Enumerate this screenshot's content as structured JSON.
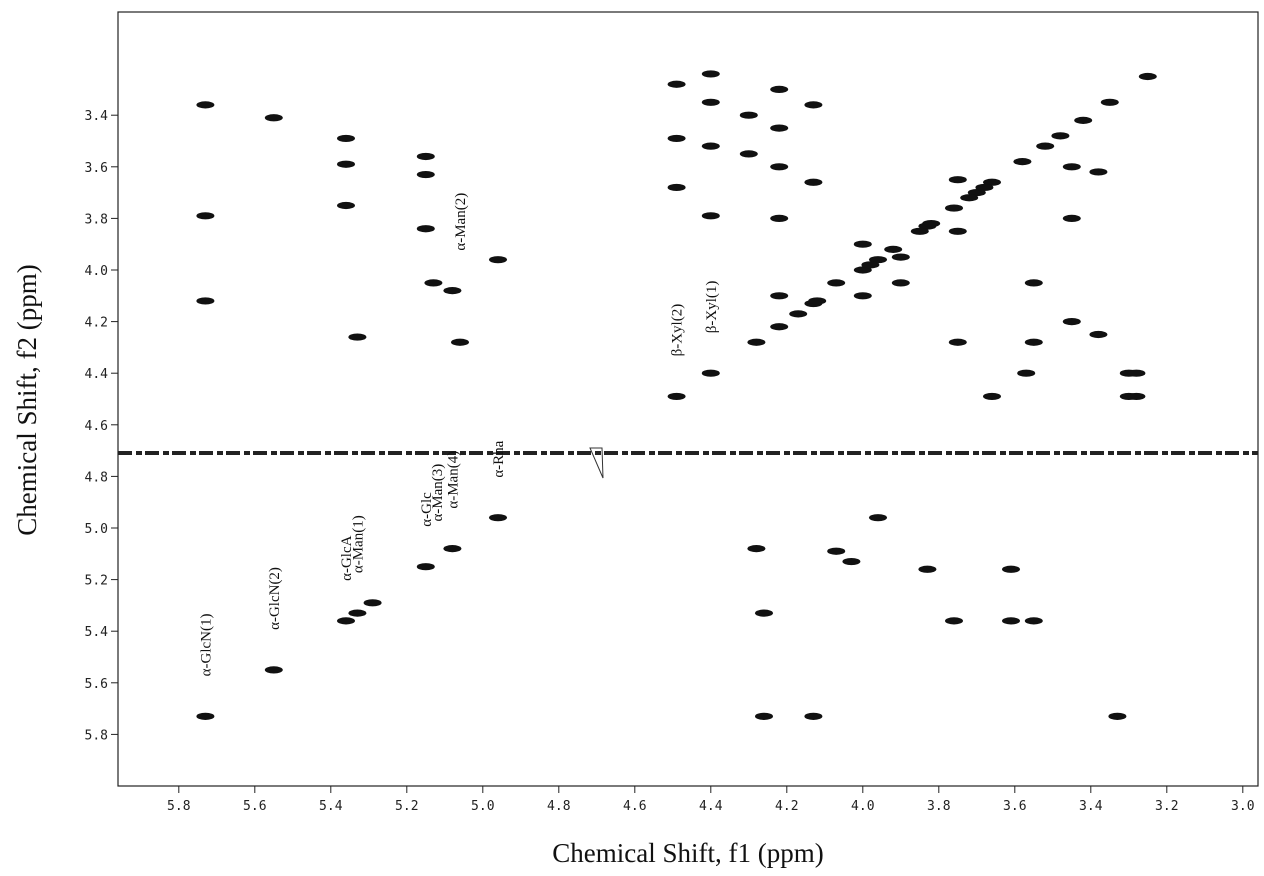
{
  "chart_data": {
    "type": "scatter",
    "xlabel": "Chemical Shift, f1 (ppm)",
    "ylabel": "Chemical Shift, f2 (ppm)",
    "xlim": [
      5.96,
      2.96
    ],
    "ylim": [
      3.0,
      6.0
    ],
    "xticks": [
      5.8,
      5.6,
      5.4,
      5.2,
      {
        "value": 5,
        "label": "5.0"
      },
      4.8,
      4.6,
      4.4,
      4.2,
      {
        "value": 4,
        "label": "4.0"
      },
      3.8,
      3.6,
      3.4,
      3.2,
      {
        "value": 3,
        "label": "3.0"
      }
    ],
    "yticks": [
      3.4,
      3.6,
      3.8,
      {
        "value": 4,
        "label": "4.0"
      },
      4.2,
      4.4,
      4.6,
      4.8,
      {
        "value": 5,
        "label": "5.0"
      },
      5.2,
      5.4,
      5.6,
      5.8
    ],
    "color": "#111111",
    "series": [
      {
        "x": [
          5.73,
          5.73,
          5.73,
          5.73,
          5.55,
          5.55,
          5.36,
          5.36,
          5.36,
          5.36,
          5.33,
          5.33,
          5.29,
          5.15,
          5.15,
          5.15,
          5.15,
          5.13,
          5.08,
          5.08,
          5.06,
          4.96,
          4.96,
          4.49,
          4.49,
          4.49,
          4.49,
          4.4,
          4.4,
          4.4,
          4.4,
          4.4,
          4.28,
          4.28,
          4.26,
          4.26,
          4.22,
          4.22,
          4.22,
          4.22,
          4.22,
          4.22,
          4.13,
          4.13,
          4.13,
          4.13,
          4.07,
          4.07,
          4.03,
          3.96,
          3.96,
          3.83,
          3.83,
          3.76,
          3.76,
          3.66,
          3.66,
          3.61,
          3.61,
          3.57,
          3.55,
          3.33,
          3.3,
          3.3,
          3.25,
          3.35,
          3.48,
          3.58,
          3.7,
          3.85,
          3.92,
          4.0,
          4.0,
          4.0,
          3.9,
          3.9,
          3.75,
          3.75,
          3.75,
          3.55,
          3.55,
          3.45,
          3.45,
          3.45,
          3.38,
          3.38,
          4.17,
          4.12,
          3.98,
          3.82,
          3.72,
          3.68,
          3.52,
          3.42,
          3.28,
          3.28,
          4.3,
          4.3
        ],
        "y": [
          3.36,
          3.79,
          4.12,
          5.73,
          3.41,
          5.55,
          3.49,
          3.59,
          3.75,
          5.36,
          4.26,
          5.33,
          5.29,
          3.56,
          3.63,
          3.84,
          5.15,
          4.05,
          4.08,
          5.08,
          4.28,
          3.96,
          4.96,
          3.28,
          3.49,
          3.68,
          4.49,
          3.24,
          3.35,
          3.52,
          3.79,
          4.4,
          4.28,
          5.08,
          5.33,
          5.73,
          3.3,
          3.45,
          3.6,
          3.8,
          4.1,
          4.22,
          3.36,
          3.66,
          4.13,
          5.73,
          5.09,
          4.05,
          5.13,
          4.96,
          3.96,
          5.16,
          3.83,
          5.36,
          3.76,
          4.49,
          3.66,
          5.16,
          5.36,
          4.4,
          5.36,
          5.73,
          4.4,
          4.49,
          3.25,
          3.35,
          3.48,
          3.58,
          3.7,
          3.85,
          3.92,
          3.9,
          4.0,
          4.1,
          3.95,
          4.05,
          3.85,
          3.65,
          4.28,
          4.05,
          4.28,
          3.6,
          3.8,
          4.2,
          3.62,
          4.25,
          4.17,
          4.12,
          3.98,
          3.82,
          3.72,
          3.68,
          3.52,
          3.42,
          4.4,
          4.49,
          3.4,
          3.55
        ]
      }
    ],
    "annotations": [
      {
        "text": "α-GlcN(1)",
        "x": 5.73,
        "y": 5.73
      },
      {
        "text": "α-GlcN(2)",
        "x": 5.55,
        "y": 5.55
      },
      {
        "text": "α-GlcA",
        "x": 5.36,
        "y": 5.36
      },
      {
        "text": "α-Man(1)",
        "x": 5.33,
        "y": 5.33
      },
      {
        "text": "α-Glc",
        "x": 5.15,
        "y": 5.15
      },
      {
        "text": "α-Man(3)",
        "x": 5.12,
        "y": 5.13
      },
      {
        "text": "α-Man(4)",
        "x": 5.08,
        "y": 5.08
      },
      {
        "text": "α-Man(2)",
        "x": 5.06,
        "y": 4.08
      },
      {
        "text": "α-Rha",
        "x": 4.96,
        "y": 4.96
      },
      {
        "text": "β-Xyl(2)",
        "x": 4.49,
        "y": 4.49
      },
      {
        "text": "β-Xyl(1)",
        "x": 4.4,
        "y": 4.4
      }
    ]
  }
}
